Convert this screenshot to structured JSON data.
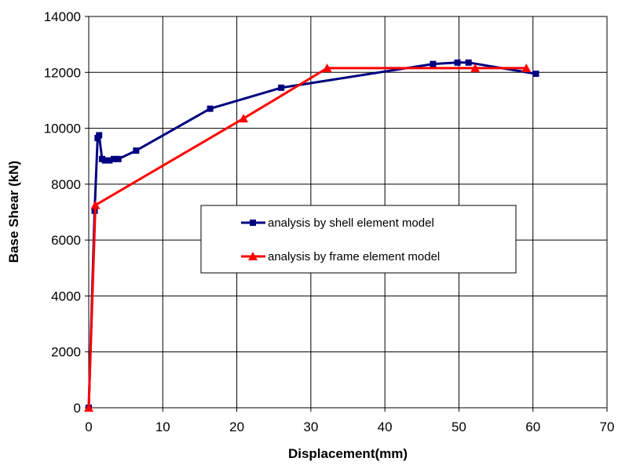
{
  "chart_data": {
    "type": "line",
    "xlabel": "Displacement(mm)",
    "ylabel": "Base Shear (kN)",
    "xlim": [
      0,
      70
    ],
    "ylim": [
      0,
      14000
    ],
    "xticks": [
      0,
      10,
      20,
      30,
      40,
      50,
      60,
      70
    ],
    "yticks": [
      0,
      2000,
      4000,
      6000,
      8000,
      10000,
      12000,
      14000
    ],
    "grid": true,
    "legend_position": "center-right",
    "series": [
      {
        "name": "analysis by shell element model",
        "color": "#000080",
        "marker": "square",
        "x": [
          0,
          0.8,
          1.2,
          1.4,
          1.8,
          2.2,
          2.8,
          3.4,
          4.0,
          6.4,
          16.4,
          26.0,
          46.5,
          49.8,
          51.3,
          60.4
        ],
        "y": [
          0,
          7050,
          9650,
          9750,
          8900,
          8850,
          8850,
          8900,
          8900,
          9200,
          10700,
          11450,
          12300,
          12350,
          12350,
          11950
        ]
      },
      {
        "name": "analysis by frame element model",
        "color": "#ff0000",
        "marker": "triangle",
        "x": [
          0,
          0.9,
          20.9,
          32.2,
          52.2,
          59.1
        ],
        "y": [
          0,
          7250,
          10350,
          12150,
          12150,
          12150
        ]
      }
    ]
  }
}
